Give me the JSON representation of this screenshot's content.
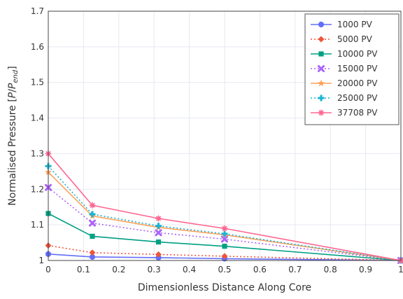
{
  "chart_data": {
    "type": "line",
    "xlabel": "Dimensionless Distance Along Core",
    "ylabel_main": "Normalised Pressure [",
    "ylabel_italic_p": "P",
    "ylabel_slash": "/",
    "ylabel_italic_pend": "P",
    "ylabel_sub": "end",
    "ylabel_close": "]",
    "xlim": [
      0,
      1
    ],
    "ylim": [
      1,
      1.7
    ],
    "xticks": [
      0,
      0.1,
      0.2,
      0.3,
      0.4,
      0.5,
      0.6,
      0.7,
      0.8,
      0.9,
      1
    ],
    "xtick_labels": [
      "0",
      "0.1",
      "0.2",
      "0.3",
      "0.4",
      "0.5",
      "0.6",
      "0.7",
      "0.8",
      "0.9",
      "1"
    ],
    "yticks": [
      1,
      1.1,
      1.2,
      1.3,
      1.4,
      1.5,
      1.6,
      1.7
    ],
    "ytick_labels": [
      "1",
      "1.1",
      "1.2",
      "1.3",
      "1.4",
      "1.5",
      "1.6",
      "1.7"
    ],
    "grid": true,
    "legend_position": "top-right",
    "x": [
      0,
      0.125,
      0.3125,
      0.5,
      1
    ],
    "series": [
      {
        "name": "1000 PV",
        "values": [
          1.018,
          1.01,
          1.008,
          1.005,
          1.0
        ],
        "color": "#636efa",
        "marker": "circle",
        "dash": "solid"
      },
      {
        "name": "5000 PV",
        "values": [
          1.042,
          1.022,
          1.017,
          1.012,
          1.0
        ],
        "color": "#ef553b",
        "marker": "diamond",
        "dash": "dot"
      },
      {
        "name": "10000 PV",
        "values": [
          1.132,
          1.068,
          1.052,
          1.04,
          1.0
        ],
        "color": "#00a083",
        "marker": "square",
        "dash": "solid"
      },
      {
        "name": "15000 PV",
        "values": [
          1.205,
          1.105,
          1.078,
          1.06,
          1.0
        ],
        "color": "#ab63fa",
        "marker": "x",
        "dash": "dot"
      },
      {
        "name": "20000 PV",
        "values": [
          1.248,
          1.125,
          1.093,
          1.072,
          1.0
        ],
        "color": "#ffa15a",
        "marker": "star",
        "dash": "solid"
      },
      {
        "name": "25000 PV",
        "values": [
          1.265,
          1.13,
          1.097,
          1.075,
          1.0
        ],
        "color": "#19b3d3",
        "marker": "cross",
        "dash": "dot"
      },
      {
        "name": "37708 PV",
        "values": [
          1.3,
          1.155,
          1.118,
          1.09,
          1.0
        ],
        "color": "#ff6692",
        "marker": "asterisk",
        "dash": "solid"
      }
    ]
  }
}
